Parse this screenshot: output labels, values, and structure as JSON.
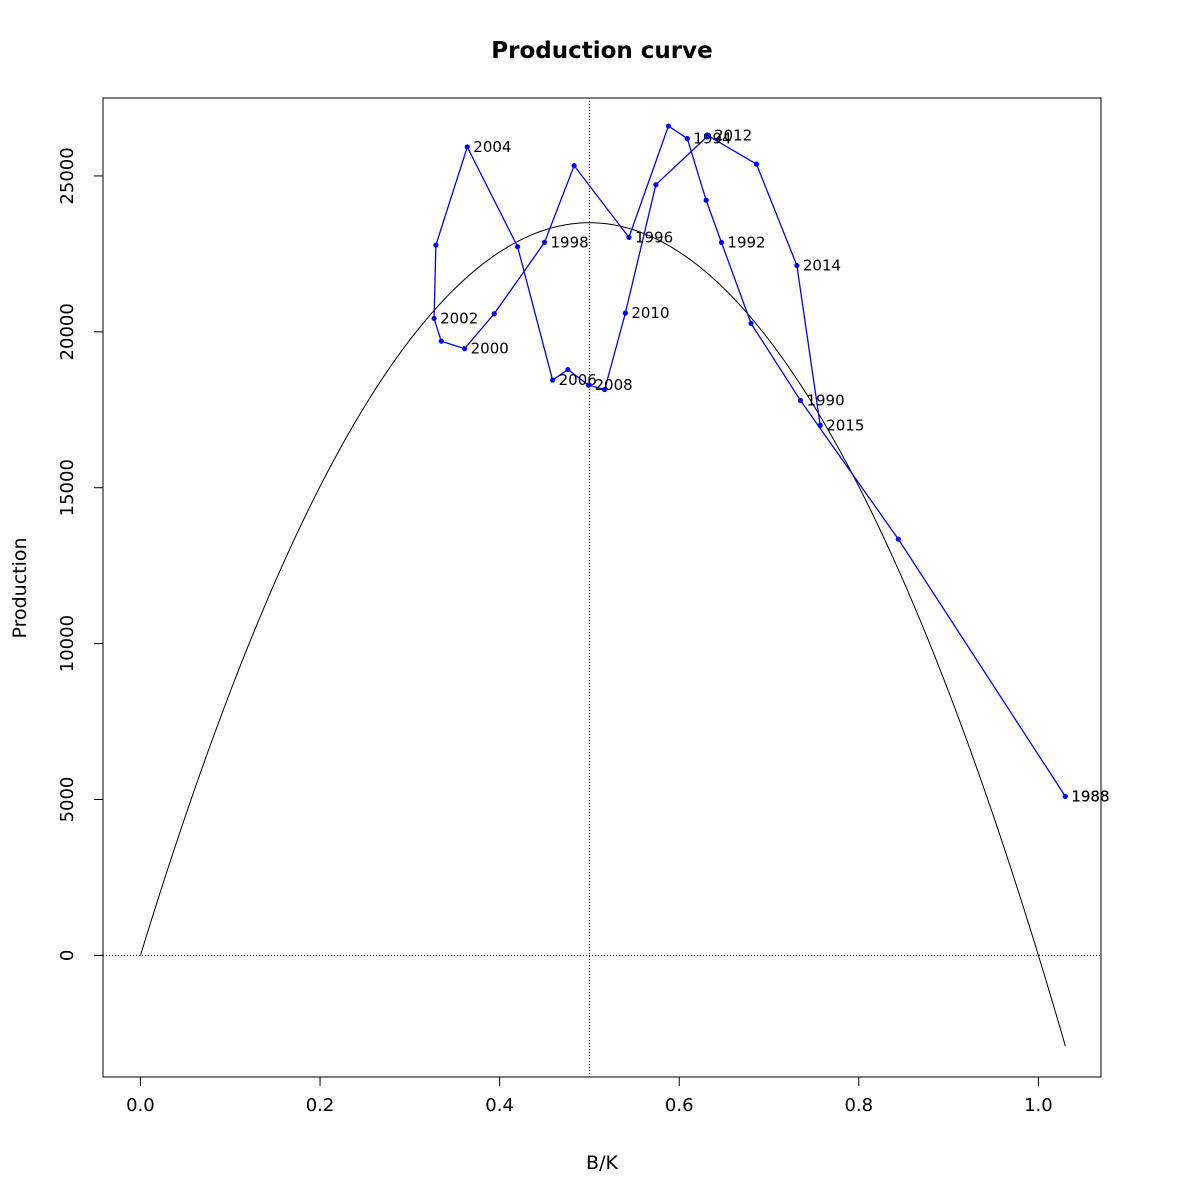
{
  "chart_data": {
    "type": "line",
    "title": "Production curve",
    "xlabel": "B/K",
    "ylabel": "Production",
    "xlim": [
      -0.0417,
      1.0697
    ],
    "ylim": [
      -3900,
      27500
    ],
    "x_ticks": [
      0.0,
      0.2,
      0.4,
      0.6,
      0.8,
      1.0
    ],
    "x_tick_labels": [
      "0.0",
      "0.2",
      "0.4",
      "0.6",
      "0.8",
      "1.0"
    ],
    "y_ticks": [
      0,
      5000,
      10000,
      15000,
      20000,
      25000
    ],
    "y_tick_labels": [
      "0",
      "5000",
      "10000",
      "15000",
      "20000",
      "25000"
    ],
    "grid": false,
    "reference_lines": {
      "vertical_x": 0.5,
      "horizontal_y": 0
    },
    "colors": {
      "series": "#0000ff",
      "curve": "#000000",
      "reference": "#000000"
    },
    "curve": {
      "shape": "parabola",
      "peak_x": 0.5,
      "peak_y": 23500,
      "x_range": [
        0.0,
        1.03
      ]
    },
    "series": [
      {
        "x": [
          1.03,
          0.844,
          0.735,
          0.68,
          0.647,
          0.63,
          0.609,
          0.588,
          0.544,
          0.483,
          0.45,
          0.394,
          0.361,
          0.335,
          0.327,
          0.329,
          0.364,
          0.42,
          0.459,
          0.476,
          0.499,
          0.517,
          0.54,
          0.574,
          0.632,
          0.686,
          0.731,
          0.757
        ],
        "y": [
          5100,
          13350,
          17800,
          20270,
          22870,
          24220,
          26200,
          26600,
          23030,
          25330,
          22870,
          20580,
          19460,
          19700,
          20430,
          22780,
          25930,
          22730,
          18450,
          18790,
          18290,
          18150,
          20600,
          24720,
          26290,
          25380,
          22130,
          17000
        ],
        "point_labels": [
          "1988",
          "",
          "1990",
          "",
          "1992",
          "",
          "1994",
          "",
          "1996",
          "",
          "1998",
          "",
          "2000",
          "",
          "2002",
          "",
          "2004",
          "",
          "2006",
          "",
          "2008",
          "",
          "2010",
          "",
          "2012",
          "",
          "2014",
          "2015"
        ]
      }
    ],
    "extra_labels": [
      {
        "x": 1.03,
        "y": 5100,
        "text": "1988"
      }
    ]
  }
}
